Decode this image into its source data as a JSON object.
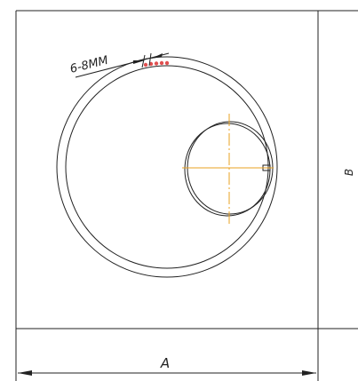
{
  "labels": {
    "gap": "6-8MM",
    "width": "A",
    "height": "B"
  }
}
